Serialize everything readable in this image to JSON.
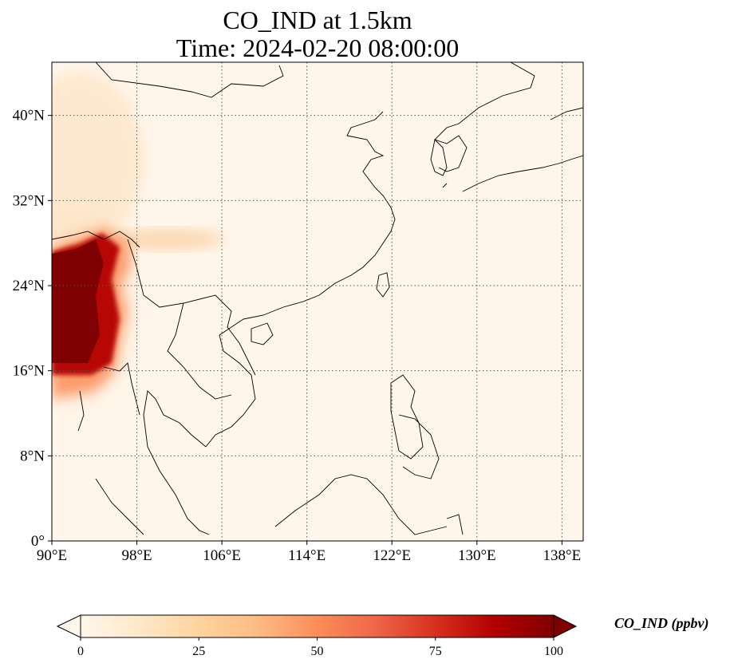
{
  "title": {
    "line1": "CO_IND at 1.5km",
    "line2": "Time: 2024-02-20 08:00:00"
  },
  "map": {
    "projection": "PlateCarree",
    "extent": {
      "lon": [
        90,
        140
      ],
      "lat": [
        0,
        45
      ]
    },
    "gridlines": "dotted",
    "lon_ticks": [
      {
        "value": 90,
        "label": "90°E"
      },
      {
        "value": 98,
        "label": "98°E"
      },
      {
        "value": 106,
        "label": "106°E"
      },
      {
        "value": 114,
        "label": "114°E"
      },
      {
        "value": 122,
        "label": "122°E"
      },
      {
        "value": 130,
        "label": "130°E"
      },
      {
        "value": 138,
        "label": "138°E"
      }
    ],
    "lat_ticks": [
      {
        "value": 0,
        "label": "0°"
      },
      {
        "value": 8,
        "label": "8°N"
      },
      {
        "value": 16,
        "label": "16°N"
      },
      {
        "value": 24,
        "label": "24°N"
      },
      {
        "value": 32,
        "label": "32°N"
      },
      {
        "value": 40,
        "label": "40°N"
      }
    ],
    "colormap": "OrRd",
    "colors": [
      "#fff7ec",
      "#fee8c8",
      "#fdd49e",
      "#fdbb84",
      "#fc8d59",
      "#ef6548",
      "#d7301f",
      "#b30000",
      "#7f0000"
    ],
    "plume_center_lonlat": [
      91.5,
      23
    ],
    "coastline_color": "#000000"
  },
  "colorbar": {
    "label": "CO_IND (ppbv)",
    "min": 0,
    "max": 100,
    "extend": "both",
    "ticks": [
      {
        "value": 0,
        "label": "0"
      },
      {
        "value": 25,
        "label": "25"
      },
      {
        "value": 50,
        "label": "50"
      },
      {
        "value": 75,
        "label": "75"
      },
      {
        "value": 100,
        "label": "100"
      }
    ]
  }
}
